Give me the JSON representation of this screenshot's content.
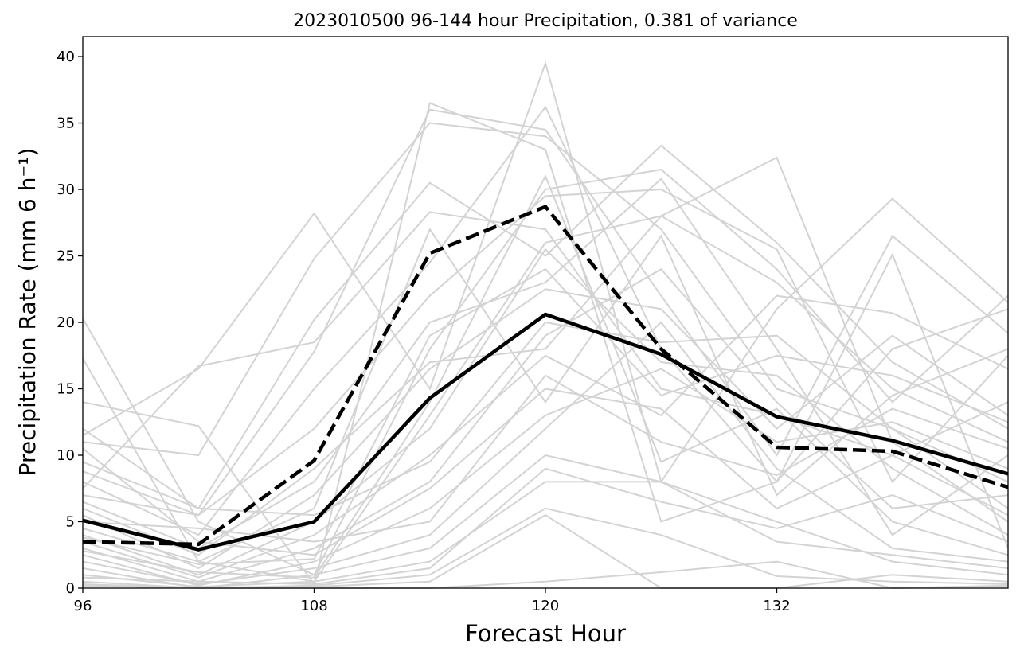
{
  "chart_data": {
    "type": "line",
    "title": "2023010500 96-144 hour Precipitation, 0.381 of variance",
    "xlabel": "Forecast Hour",
    "ylabel": "Precipitation Rate (mm 6 h⁻¹)",
    "x": [
      96,
      102,
      108,
      114,
      120,
      126,
      132,
      138,
      144
    ],
    "xlim": [
      96,
      144
    ],
    "ylim": [
      0,
      41.5
    ],
    "xticks": [
      96,
      108,
      120,
      132
    ],
    "xtick_labels": [
      "96",
      "108",
      "120",
      "132"
    ],
    "yticks": [
      0,
      5,
      10,
      15,
      20,
      25,
      30,
      35,
      40
    ],
    "ytick_labels": [
      "0",
      "5",
      "10",
      "15",
      "20",
      "25",
      "30",
      "35",
      "40"
    ],
    "grid": false,
    "colors": {
      "ensemble": "#d3d3d3",
      "highlight": "#000000"
    },
    "highlight_series": [
      {
        "style": "solid",
        "values": [
          5.1,
          2.9,
          5.0,
          14.3,
          20.6,
          17.6,
          12.9,
          11.1,
          8.6
        ]
      },
      {
        "style": "dashed",
        "values": [
          3.5,
          3.3,
          9.6,
          25.2,
          28.7,
          18.0,
          10.6,
          10.3,
          7.6
        ]
      }
    ],
    "ensemble_series": [
      [
        20.3,
        5.0,
        1.0,
        18.0,
        30.0,
        31.5,
        24.0,
        14.0,
        22.0
      ],
      [
        17.3,
        2.0,
        0.5,
        13.0,
        26.0,
        28.0,
        32.4,
        11.0,
        5.0
      ],
      [
        14.0,
        12.2,
        0.3,
        36.5,
        33.0,
        5.0,
        8.0,
        18.0,
        21.0
      ],
      [
        11.5,
        16.5,
        28.2,
        15.0,
        39.5,
        8.0,
        21.0,
        29.3,
        21.5
      ],
      [
        11.0,
        10.0,
        24.8,
        35.0,
        34.0,
        27.0,
        15.0,
        12.0,
        6.0
      ],
      [
        9.5,
        6.0,
        20.2,
        30.5,
        25.0,
        33.3,
        26.0,
        17.0,
        12.0
      ],
      [
        8.8,
        5.5,
        17.8,
        36.0,
        34.5,
        22.0,
        10.0,
        26.5,
        19.2
      ],
      [
        8.0,
        4.0,
        15.0,
        24.5,
        36.2,
        18.0,
        8.0,
        25.1,
        3.0
      ],
      [
        7.5,
        16.7,
        18.5,
        28.3,
        27.0,
        15.0,
        13.0,
        10.0,
        14.0
      ],
      [
        7.0,
        5.5,
        12.0,
        22.0,
        29.5,
        30.0,
        25.5,
        8.0,
        17.5
      ],
      [
        6.5,
        3.0,
        8.0,
        20.0,
        23.0,
        30.8,
        18.0,
        4.0,
        10.0
      ],
      [
        6.0,
        2.5,
        9.0,
        17.0,
        18.0,
        28.0,
        23.0,
        15.0,
        11.0
      ],
      [
        5.5,
        1.5,
        7.0,
        16.5,
        22.5,
        21.0,
        12.0,
        19.0,
        13.0
      ],
      [
        4.5,
        2.0,
        6.0,
        27.0,
        14.0,
        26.5,
        7.0,
        14.5,
        18.0
      ],
      [
        4.0,
        1.0,
        5.0,
        12.0,
        25.5,
        17.0,
        16.0,
        9.0,
        4.0
      ],
      [
        3.5,
        0.8,
        4.0,
        10.0,
        17.5,
        13.0,
        22.0,
        20.7,
        16.5
      ],
      [
        3.0,
        0.5,
        3.0,
        8.0,
        19.0,
        24.0,
        14.0,
        6.0,
        7.0
      ],
      [
        2.5,
        0.2,
        2.0,
        6.0,
        13.0,
        16.5,
        11.0,
        12.5,
        9.0
      ],
      [
        2.0,
        0.3,
        1.5,
        4.0,
        12.0,
        20.0,
        9.0,
        3.0,
        2.0
      ],
      [
        1.5,
        0.0,
        1.0,
        3.0,
        10.0,
        8.0,
        5.0,
        2.0,
        1.0
      ],
      [
        1.0,
        0.1,
        0.5,
        2.0,
        8.0,
        8.0,
        3.5,
        2.5,
        1.5
      ],
      [
        0.5,
        0.0,
        0.2,
        1.0,
        6.0,
        4.0,
        0.9,
        0.5,
        0.3
      ],
      [
        0.3,
        0.0,
        0.0,
        0.0,
        0.5,
        1.2,
        2.0,
        0.0,
        0.2
      ],
      [
        0.2,
        0.0,
        0.1,
        0.5,
        5.5,
        0.0,
        0.0,
        1.0,
        0.5
      ],
      [
        0.8,
        0.5,
        0.3,
        1.5,
        9.0,
        6.5,
        4.5,
        7.0,
        3.5
      ],
      [
        10.5,
        3.5,
        2.5,
        7.5,
        15.0,
        13.5,
        6.0,
        10.0,
        5.5
      ],
      [
        12.0,
        6.0,
        5.5,
        9.5,
        20.0,
        18.5,
        19.0,
        12.0,
        8.0
      ],
      [
        5.0,
        4.5,
        3.5,
        5.0,
        16.0,
        11.0,
        8.5,
        13.5,
        10.5
      ],
      [
        3.8,
        1.8,
        2.2,
        19.0,
        24.0,
        14.5,
        17.5,
        16.0,
        12.5
      ],
      [
        2.8,
        1.2,
        0.8,
        14.0,
        31.0,
        9.5,
        13.5,
        5.0,
        2.5
      ]
    ]
  }
}
